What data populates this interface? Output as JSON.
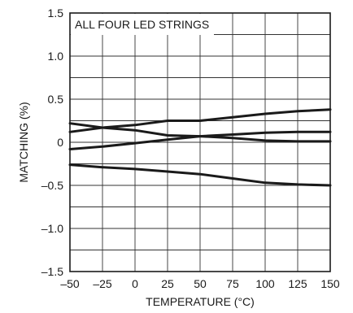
{
  "chart_data": {
    "type": "line",
    "title": "",
    "annotation": "ALL FOUR LED STRINGS",
    "xlabel": "TEMPERATURE (°C)",
    "ylabel": "MATCHING (%)",
    "xlim": [
      -50,
      150
    ],
    "ylim": [
      -1.5,
      1.5
    ],
    "x_ticks": [
      -50,
      -25,
      0,
      25,
      50,
      75,
      100,
      125,
      150
    ],
    "x_tick_labels": [
      "–50",
      "–25",
      "0",
      "25",
      "50",
      "75",
      "100",
      "125",
      "150"
    ],
    "y_ticks": [
      1.5,
      1.0,
      0.5,
      0,
      -0.5,
      -1.0,
      -1.5
    ],
    "y_tick_labels": [
      "1.5",
      "1.0",
      "0.5",
      "0",
      "–0.5",
      "–1.0",
      "–1.5"
    ],
    "grid": true,
    "line_color": "#1a1a1a",
    "x": [
      -50,
      -25,
      0,
      25,
      50,
      75,
      100,
      125,
      150
    ],
    "series": [
      {
        "values": [
          0.12,
          0.17,
          0.2,
          0.25,
          0.25,
          0.29,
          0.33,
          0.36,
          0.38
        ]
      },
      {
        "values": [
          0.22,
          0.17,
          0.14,
          0.08,
          0.07,
          0.05,
          0.02,
          0.01,
          0.01
        ]
      },
      {
        "values": [
          -0.08,
          -0.05,
          -0.01,
          0.03,
          0.07,
          0.09,
          0.11,
          0.12,
          0.12
        ]
      },
      {
        "values": [
          -0.26,
          -0.29,
          -0.31,
          -0.34,
          -0.37,
          -0.42,
          -0.47,
          -0.49,
          -0.5
        ]
      }
    ]
  }
}
